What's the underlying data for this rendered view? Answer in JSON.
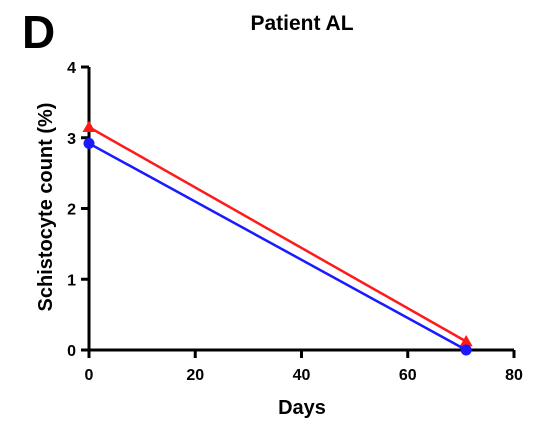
{
  "chart_data": {
    "type": "line",
    "panel_label": "D",
    "title": "Patient AL",
    "xlabel": "Days",
    "ylabel": "Schistocyte count (%)",
    "xlim": [
      0,
      80
    ],
    "ylim": [
      0,
      4
    ],
    "x_ticks": [
      0,
      20,
      40,
      60,
      80
    ],
    "y_ticks": [
      0,
      1,
      2,
      3,
      4
    ],
    "grid": false,
    "legend": "none",
    "series": [
      {
        "color": "#ff1a1a",
        "marker": "triangle",
        "points": [
          {
            "x": 0,
            "y": 3.15
          },
          {
            "x": 71,
            "y": 0.12
          }
        ]
      },
      {
        "color": "#1a1aff",
        "marker": "circle",
        "points": [
          {
            "x": 0,
            "y": 2.92
          },
          {
            "x": 71,
            "y": 0.0
          }
        ]
      }
    ]
  }
}
